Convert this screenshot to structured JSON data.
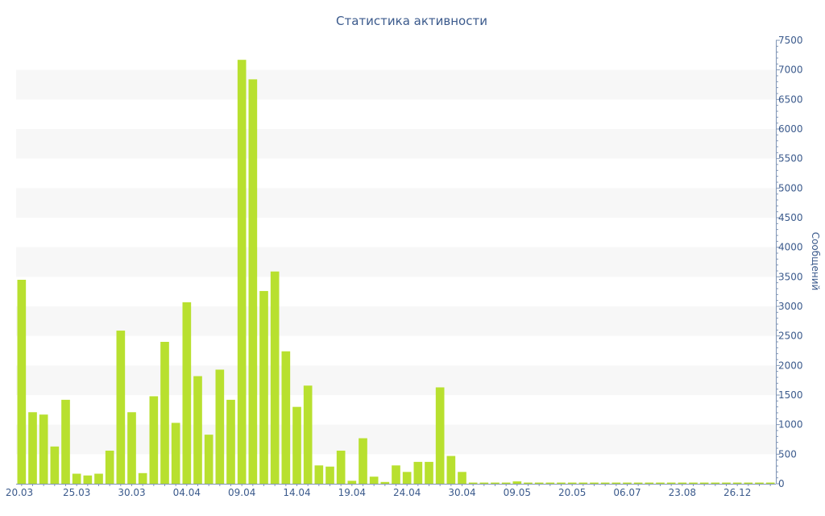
{
  "colors": {
    "bar": "#b8e02f",
    "text": "#3b5a8c",
    "band": "#f7f7f7",
    "axis": "#7f94b5"
  },
  "chart_data": {
    "type": "bar",
    "title": "Статистика активности",
    "xlabel": "",
    "ylabel": "Сообщений",
    "ylim": [
      0,
      7500
    ],
    "y_ticks": [
      0,
      500,
      1000,
      1500,
      2000,
      2500,
      3000,
      3500,
      4000,
      4500,
      5000,
      5500,
      6000,
      6500,
      7000,
      7500
    ],
    "y_axis_side": "right",
    "grid": "alternating horizontal bands",
    "x_tick_labels": [
      {
        "index": 0,
        "label": "20.03"
      },
      {
        "index": 5,
        "label": "25.03"
      },
      {
        "index": 10,
        "label": "30.03"
      },
      {
        "index": 15,
        "label": "04.04"
      },
      {
        "index": 20,
        "label": "09.04"
      },
      {
        "index": 25,
        "label": "14.04"
      },
      {
        "index": 30,
        "label": "19.04"
      },
      {
        "index": 35,
        "label": "24.04"
      },
      {
        "index": 40,
        "label": "30.04"
      },
      {
        "index": 45,
        "label": "09.05"
      },
      {
        "index": 50,
        "label": "20.05"
      },
      {
        "index": 55,
        "label": "06.07"
      },
      {
        "index": 60,
        "label": "23.08"
      },
      {
        "index": 65,
        "label": "26.12"
      }
    ],
    "values": [
      3450,
      1210,
      1170,
      630,
      1420,
      170,
      140,
      170,
      560,
      2590,
      1210,
      180,
      1480,
      2400,
      1030,
      3070,
      1820,
      830,
      1930,
      1420,
      7170,
      6840,
      3260,
      3590,
      2240,
      1300,
      1660,
      310,
      290,
      560,
      50,
      770,
      120,
      30,
      310,
      200,
      370,
      370,
      1630,
      470,
      200,
      20,
      20,
      20,
      20,
      40,
      20,
      20,
      20,
      20,
      20,
      20,
      20,
      20,
      20,
      20,
      20,
      20,
      20,
      20,
      20,
      20,
      20,
      20,
      20,
      20,
      20,
      20,
      20
    ]
  }
}
